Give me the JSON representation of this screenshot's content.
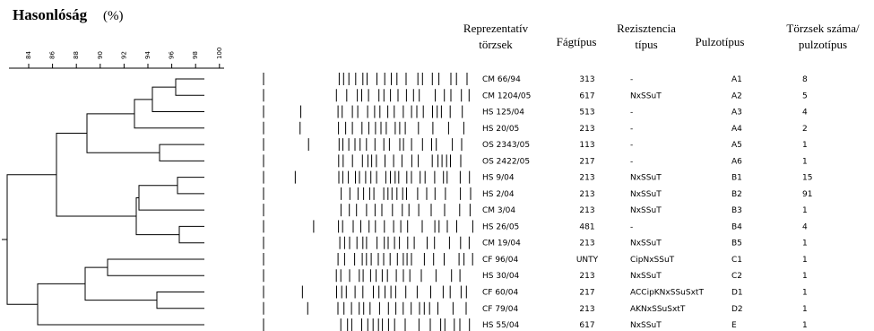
{
  "title": "Hasonlóság",
  "title_unit": "(%)",
  "scale": {
    "labels": [
      "84",
      "86",
      "88",
      "90",
      "92",
      "94",
      "96",
      "98",
      "100"
    ]
  },
  "headers": {
    "strain": [
      "Reprezentatív",
      "törzsek"
    ],
    "phage": [
      "Fágtípus"
    ],
    "resistance": [
      "Rezisztencia",
      "típus"
    ],
    "pulse": [
      "Pulzotípus"
    ],
    "count": [
      "Törzsek száma/",
      "pulzotípus"
    ]
  },
  "rows": [
    [
      "CM 66/94",
      "313",
      "-",
      "A1",
      "8"
    ],
    [
      "CM 1204/05",
      "617",
      "NxSSuT",
      "A2",
      "5"
    ],
    [
      "HS 125/04",
      "513",
      "-",
      "A3",
      "4"
    ],
    [
      "HS 20/05",
      "213",
      "-",
      "A4",
      "2"
    ],
    [
      "OS 2343/05",
      "113",
      "-",
      "A5",
      "1"
    ],
    [
      "OS 2422/05",
      "217",
      "-",
      "A6",
      "1"
    ],
    [
      "HS 9/04",
      "213",
      "NxSSuT",
      "B1",
      "15"
    ],
    [
      "HS 2/04",
      "213",
      "NxSSuT",
      "B2",
      "91"
    ],
    [
      "CM 3/04",
      "213",
      "NxSSuT",
      "B3",
      "1"
    ],
    [
      "HS 26/05",
      "481",
      "-",
      "B4",
      "4"
    ],
    [
      "CM 19/04",
      "213",
      "NxSSuT",
      "B5",
      "1"
    ],
    [
      "CF 96/04",
      "UNTY",
      "CipNxSSuT",
      "C1",
      "1"
    ],
    [
      "HS 30/04",
      "213",
      "NxSSuT",
      "C2",
      "1"
    ],
    [
      "CF 60/04",
      "217",
      "ACCipKNxSSuSxtT",
      "D1",
      "1"
    ],
    [
      "CF 79/04",
      "213",
      "AKNxSSuSxtT",
      "D2",
      "1"
    ],
    [
      "HS 55/04",
      "617",
      "NxSSuT",
      "E",
      "1"
    ]
  ]
}
